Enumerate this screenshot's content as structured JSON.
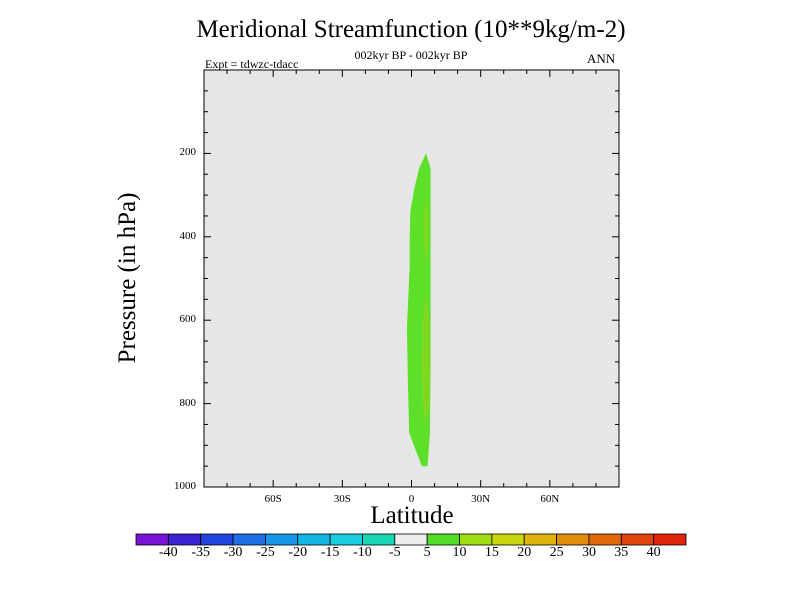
{
  "chart_data": {
    "type": "contour",
    "title": "Meridional Streamfunction (10**9kg/m-2)",
    "subtitle": "002kyr BP - 002kyr BP",
    "experiment": "Expt = tdwzc-tdacc",
    "season": "ANN",
    "xlabel": "Latitude",
    "ylabel": "Pressure (in hPa)",
    "x_ticks": [
      {
        "value": -60,
        "label": "60S"
      },
      {
        "value": -30,
        "label": "30S"
      },
      {
        "value": 0,
        "label": "0"
      },
      {
        "value": 30,
        "label": "30N"
      },
      {
        "value": 60,
        "label": "60N"
      }
    ],
    "y_ticks": [
      {
        "value": 200,
        "label": "200"
      },
      {
        "value": 400,
        "label": "400"
      },
      {
        "value": 600,
        "label": "600"
      },
      {
        "value": 800,
        "label": "800"
      },
      {
        "value": 1000,
        "label": "1000"
      }
    ],
    "xlim": [
      -90,
      90
    ],
    "ylim": [
      1000,
      0
    ],
    "background_color": "#e6e6e6",
    "colorbar": {
      "levels": [
        "-40",
        "-35",
        "-30",
        "-25",
        "-20",
        "-15",
        "-10",
        "-5",
        "5",
        "10",
        "15",
        "20",
        "25",
        "30",
        "35",
        "40"
      ],
      "colors": [
        "#7a14d6",
        "#3a24d2",
        "#2244dc",
        "#1e6ee6",
        "#1896e8",
        "#12b6e4",
        "#16cee0",
        "#16d6b4",
        "#eeeeee",
        "#52de28",
        "#a2de14",
        "#cad60e",
        "#e0b40c",
        "#e08e0c",
        "#e06a0c",
        "#e0440c",
        "#e0240c"
      ]
    },
    "contour_regions": [
      {
        "level": "5 to 10",
        "color": "#5ce02a",
        "outline": [
          [
            -0.5,
            340
          ],
          [
            1.3,
            282
          ],
          [
            3.3,
            236
          ],
          [
            6.3,
            200
          ],
          [
            8.3,
            236
          ],
          [
            8.3,
            700
          ],
          [
            8.0,
            870
          ],
          [
            7.0,
            950
          ],
          [
            4.5,
            950
          ],
          [
            1.0,
            900
          ],
          [
            -1.0,
            870
          ],
          [
            -1.5,
            760
          ],
          [
            -2.0,
            620
          ],
          [
            -1.5,
            560
          ],
          [
            -0.8,
            470
          ],
          [
            -0.8,
            405
          ]
        ]
      },
      {
        "level": "10 to 15",
        "color": "#80d81e",
        "outline": [
          [
            6.3,
            310
          ],
          [
            7.3,
            340
          ],
          [
            7.3,
            420
          ],
          [
            6.3,
            460
          ],
          [
            5.3,
            420
          ],
          [
            5.3,
            345
          ]
        ]
      },
      {
        "level": "10 to 15",
        "color": "#80d81e",
        "outline": [
          [
            6.3,
            540
          ],
          [
            7.8,
            600
          ],
          [
            8.0,
            700
          ],
          [
            7.8,
            800
          ],
          [
            6.3,
            850
          ],
          [
            4.8,
            800
          ],
          [
            4.5,
            700
          ],
          [
            4.8,
            600
          ]
        ]
      }
    ]
  }
}
